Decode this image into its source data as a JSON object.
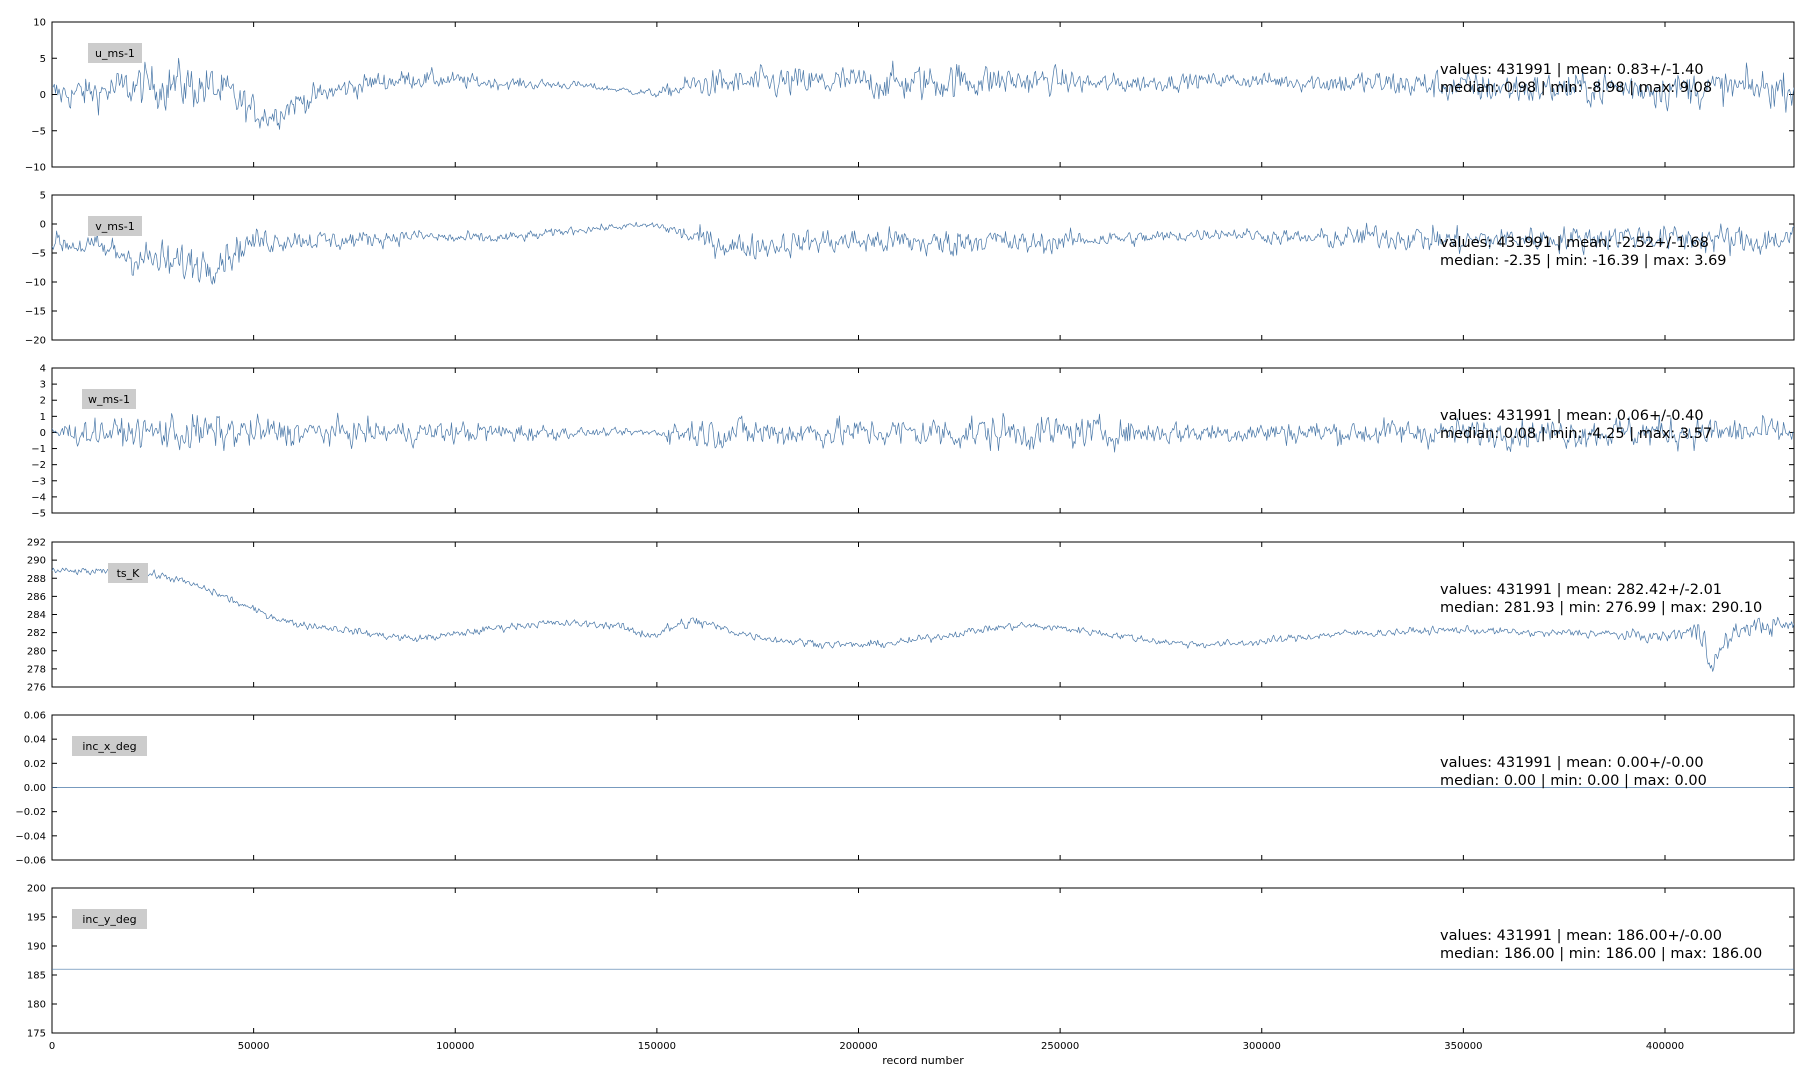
{
  "figure": {
    "xlabel": "record number",
    "x_tick_labels": [
      "0",
      "50000",
      "100000",
      "150000",
      "200000",
      "250000",
      "300000",
      "350000",
      "400000"
    ]
  },
  "colors": {
    "series": "#4a78a8",
    "frame": "#000000",
    "label_box": "#cccccc"
  },
  "chart_data": [
    {
      "type": "line",
      "label": "u_ms-1",
      "xlim": [
        0,
        431991
      ],
      "ylim": [
        -10,
        10
      ],
      "y_ticks": [
        -10,
        -5,
        0,
        5,
        10
      ],
      "y_tick_labels": [
        "−10",
        "−5",
        "0",
        "5",
        "10"
      ],
      "stats_line1": "values: 431991 | mean: 0.83+/-1.40",
      "stats_line2": "median: 0.98 | min: -8.98 | max: 9.08",
      "x": [
        0,
        10000,
        20000,
        30000,
        40000,
        45000,
        50000,
        55000,
        60000,
        70000,
        80000,
        90000,
        100000,
        110000,
        120000,
        130000,
        140000,
        150000,
        160000,
        170000,
        180000,
        190000,
        200000,
        210000,
        220000,
        230000,
        240000,
        250000,
        260000,
        270000,
        280000,
        290000,
        300000,
        310000,
        320000,
        330000,
        340000,
        350000,
        360000,
        370000,
        380000,
        390000,
        400000,
        410000,
        420000,
        431991
      ],
      "values": [
        0.0,
        0.3,
        1.0,
        1.5,
        0.8,
        -0.5,
        -2.5,
        -2.8,
        -1.2,
        0.5,
        1.7,
        2.2,
        1.9,
        1.6,
        1.4,
        1.3,
        0.7,
        0.1,
        1.4,
        1.5,
        1.6,
        1.6,
        1.7,
        1.5,
        1.8,
        2.0,
        1.8,
        1.9,
        1.4,
        1.6,
        1.8,
        2.0,
        1.9,
        1.8,
        1.6,
        1.5,
        1.3,
        1.0,
        0.9,
        0.8,
        0.8,
        0.9,
        0.9,
        0.8,
        0.9,
        0.8
      ],
      "noise": [
        1.5,
        1.6,
        2.0,
        2.3,
        2.2,
        1.9,
        1.6,
        1.4,
        1.3,
        1.1,
        1.0,
        0.9,
        0.8,
        0.6,
        0.5,
        0.4,
        0.3,
        0.4,
        1.3,
        1.4,
        1.5,
        1.6,
        1.5,
        1.7,
        1.8,
        1.7,
        1.4,
        1.2,
        1.0,
        0.9,
        0.8,
        0.7,
        0.8,
        0.9,
        1.2,
        1.3,
        1.4,
        1.5,
        1.6,
        1.5,
        1.6,
        1.7,
        1.8,
        1.7,
        1.8,
        1.7
      ]
    },
    {
      "type": "line",
      "label": "v_ms-1",
      "xlim": [
        0,
        431991
      ],
      "ylim": [
        -20,
        5
      ],
      "y_ticks": [
        -20,
        -15,
        -10,
        -5,
        0,
        5
      ],
      "y_tick_labels": [
        "−20",
        "−15",
        "−10",
        "−5",
        "0",
        "5"
      ],
      "stats_line1": "values: 431991 | mean: -2.52+/-1.68",
      "stats_line2": "median: -2.35 | min: -16.39 | max: 3.69",
      "x": [
        0,
        10000,
        20000,
        30000,
        40000,
        50000,
        60000,
        70000,
        80000,
        90000,
        100000,
        110000,
        120000,
        130000,
        140000,
        150000,
        160000,
        170000,
        180000,
        190000,
        200000,
        210000,
        220000,
        230000,
        240000,
        250000,
        260000,
        270000,
        280000,
        290000,
        300000,
        310000,
        320000,
        330000,
        340000,
        350000,
        360000,
        370000,
        380000,
        390000,
        400000,
        410000,
        420000,
        431991
      ],
      "values": [
        -3.0,
        -4.0,
        -5.5,
        -7.0,
        -6.5,
        -3.0,
        -2.5,
        -3.0,
        -2.5,
        -2.0,
        -2.5,
        -2.5,
        -2.0,
        -1.0,
        -0.5,
        -0.2,
        -2.5,
        -4.0,
        -3.5,
        -3.0,
        -3.0,
        -3.0,
        -3.5,
        -2.5,
        -3.5,
        -3.0,
        -2.5,
        -2.5,
        -2.0,
        -1.5,
        -2.0,
        -2.5,
        -2.5,
        -2.0,
        -2.5,
        -3.0,
        -2.5,
        -2.5,
        -2.5,
        -2.0,
        -2.5,
        -2.5,
        -3.0,
        -2.5
      ],
      "noise": [
        1.2,
        1.6,
        2.2,
        2.5,
        2.2,
        1.6,
        1.3,
        1.2,
        1.0,
        0.8,
        0.8,
        0.7,
        0.6,
        0.5,
        0.4,
        0.5,
        1.4,
        1.6,
        1.5,
        1.5,
        1.6,
        1.7,
        1.8,
        1.6,
        1.5,
        1.2,
        1.0,
        0.9,
        0.8,
        0.7,
        0.8,
        1.0,
        1.4,
        1.5,
        1.6,
        1.7,
        1.5,
        1.5,
        1.6,
        1.5,
        1.6,
        1.8,
        1.9,
        1.8
      ]
    },
    {
      "type": "line",
      "label": "w_ms-1",
      "xlim": [
        0,
        431991
      ],
      "ylim": [
        -5,
        4
      ],
      "y_ticks": [
        -5,
        -4,
        -3,
        -2,
        -1,
        0,
        1,
        2,
        3,
        4
      ],
      "y_tick_labels": [
        "−5",
        "−4",
        "−3",
        "−2",
        "−1",
        "0",
        "1",
        "2",
        "3",
        "4"
      ],
      "stats_line1": "values: 431991 | mean: 0.06+/-0.40",
      "stats_line2": "median: 0.08 | min: -4.25 | max: 3.57",
      "x": [
        0,
        20000,
        30000,
        40000,
        60000,
        80000,
        100000,
        120000,
        130000,
        140000,
        150000,
        155000,
        170000,
        200000,
        230000,
        250000,
        280000,
        310000,
        340000,
        370000,
        400000,
        431991
      ],
      "values": [
        0,
        0,
        0,
        0,
        0,
        0,
        0,
        0,
        0,
        0,
        0,
        0,
        0,
        0,
        0,
        0,
        0,
        0,
        0,
        0,
        0,
        0
      ],
      "noise": [
        0.5,
        0.6,
        0.9,
        0.8,
        0.6,
        0.5,
        0.5,
        0.4,
        0.2,
        0.15,
        0.2,
        0.6,
        0.7,
        0.6,
        0.8,
        0.7,
        0.5,
        0.5,
        0.6,
        0.6,
        0.7,
        0.6
      ]
    },
    {
      "type": "line",
      "label": "ts_K",
      "xlim": [
        0,
        431991
      ],
      "ylim": [
        276,
        292
      ],
      "y_ticks": [
        276,
        278,
        280,
        282,
        284,
        286,
        288,
        290,
        292
      ],
      "y_tick_labels": [
        "276",
        "278",
        "280",
        "282",
        "284",
        "286",
        "288",
        "290",
        "292"
      ],
      "stats_line1": "values: 431991 | mean: 282.42+/-2.01",
      "stats_line2": "median: 281.93 | min: 276.99 | max: 290.10",
      "x": [
        0,
        10000,
        20000,
        25000,
        30000,
        40000,
        50000,
        60000,
        70000,
        80000,
        90000,
        100000,
        110000,
        120000,
        130000,
        140000,
        145000,
        150000,
        155000,
        160000,
        170000,
        180000,
        190000,
        200000,
        210000,
        220000,
        230000,
        240000,
        250000,
        260000,
        270000,
        280000,
        290000,
        300000,
        310000,
        320000,
        330000,
        340000,
        350000,
        360000,
        370000,
        380000,
        390000,
        400000,
        405000,
        410000,
        412000,
        415000,
        420000,
        425000,
        431991
      ],
      "values": [
        288.8,
        288.7,
        288.6,
        288.4,
        288.0,
        286.5,
        284.5,
        283.0,
        282.5,
        281.8,
        281.3,
        281.8,
        282.5,
        283.0,
        283.0,
        282.8,
        282.0,
        281.8,
        282.8,
        283.2,
        282.0,
        281.2,
        280.8,
        280.6,
        280.9,
        281.6,
        282.3,
        282.8,
        282.5,
        282.0,
        281.3,
        280.8,
        280.7,
        281.0,
        281.5,
        281.9,
        282.0,
        282.2,
        282.3,
        282.1,
        281.9,
        282.0,
        281.7,
        281.5,
        282.1,
        281.8,
        278.2,
        281.0,
        282.6,
        282.8,
        282.7
      ],
      "noise": [
        0.3,
        0.3,
        0.3,
        0.3,
        0.3,
        0.3,
        0.3,
        0.3,
        0.3,
        0.3,
        0.3,
        0.3,
        0.3,
        0.3,
        0.3,
        0.3,
        0.4,
        0.4,
        0.5,
        0.5,
        0.3,
        0.3,
        0.3,
        0.3,
        0.3,
        0.3,
        0.3,
        0.3,
        0.3,
        0.3,
        0.3,
        0.3,
        0.3,
        0.3,
        0.3,
        0.3,
        0.3,
        0.3,
        0.3,
        0.3,
        0.3,
        0.4,
        0.4,
        0.5,
        0.6,
        1.4,
        1.2,
        0.8,
        0.6,
        0.8,
        0.6
      ]
    },
    {
      "type": "line",
      "label": "inc_x_deg",
      "xlim": [
        0,
        431991
      ],
      "ylim": [
        -0.06,
        0.06
      ],
      "y_ticks": [
        -0.06,
        -0.04,
        -0.02,
        0.0,
        0.02,
        0.04,
        0.06
      ],
      "y_tick_labels": [
        "−0.06",
        "−0.04",
        "−0.02",
        "0.00",
        "0.02",
        "0.04",
        "0.06"
      ],
      "stats_line1": "values: 431991 | mean: 0.00+/-0.00",
      "stats_line2": "median: 0.00 | min: 0.00 | max: 0.00",
      "x": [
        0,
        431991
      ],
      "values": [
        0.0,
        0.0
      ],
      "noise": [
        0,
        0
      ]
    },
    {
      "type": "line",
      "label": "inc_y_deg",
      "xlim": [
        0,
        431991
      ],
      "ylim": [
        175,
        200
      ],
      "y_ticks": [
        175,
        180,
        185,
        190,
        195,
        200
      ],
      "y_tick_labels": [
        "175",
        "180",
        "185",
        "190",
        "195",
        "200"
      ],
      "stats_line1": "values: 431991 | mean: 186.00+/-0.00",
      "stats_line2": "median: 186.00 | min: 186.00 | max: 186.00",
      "x": [
        0,
        431991
      ],
      "values": [
        186.0,
        186.0
      ],
      "noise": [
        0,
        0
      ]
    }
  ]
}
